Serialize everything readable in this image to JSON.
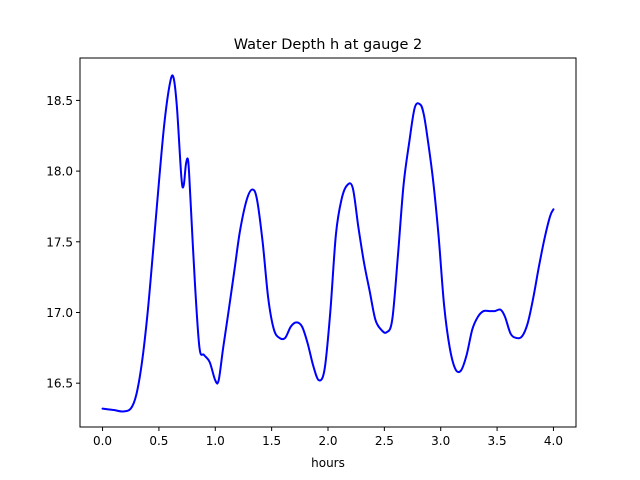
{
  "chart_data": {
    "type": "line",
    "title": "Water Depth h at gauge 2",
    "xlabel": "hours",
    "ylabel": "",
    "xlim": [
      -0.2,
      4.2
    ],
    "ylim": [
      16.19,
      18.8
    ],
    "xticks": [
      0.0,
      0.5,
      1.0,
      1.5,
      2.0,
      2.5,
      3.0,
      3.5,
      4.0
    ],
    "xtick_labels": [
      "0.0",
      "0.5",
      "1.0",
      "1.5",
      "2.0",
      "2.5",
      "3.0",
      "3.5",
      "4.0"
    ],
    "yticks": [
      16.5,
      17.0,
      17.5,
      18.0,
      18.5
    ],
    "ytick_labels": [
      "16.5",
      "17.0",
      "17.5",
      "18.0",
      "18.5"
    ],
    "grid": false,
    "series": [
      {
        "color": "#0000ff",
        "x": [
          0.0,
          0.1,
          0.18,
          0.25,
          0.3,
          0.35,
          0.4,
          0.45,
          0.5,
          0.55,
          0.6,
          0.63,
          0.66,
          0.7,
          0.72,
          0.74,
          0.76,
          0.78,
          0.82,
          0.86,
          0.9,
          0.95,
          1.0,
          1.03,
          1.07,
          1.12,
          1.17,
          1.22,
          1.28,
          1.33,
          1.37,
          1.42,
          1.47,
          1.52,
          1.57,
          1.62,
          1.67,
          1.72,
          1.77,
          1.82,
          1.87,
          1.92,
          1.97,
          2.02,
          2.07,
          2.12,
          2.17,
          2.22,
          2.27,
          2.32,
          2.37,
          2.42,
          2.47,
          2.52,
          2.57,
          2.62,
          2.67,
          2.72,
          2.77,
          2.82,
          2.85,
          2.88,
          2.93,
          2.98,
          3.03,
          3.08,
          3.13,
          3.18,
          3.23,
          3.28,
          3.33,
          3.38,
          3.43,
          3.48,
          3.53,
          3.57,
          3.62,
          3.67,
          3.72,
          3.77,
          3.82,
          3.87,
          3.92,
          3.97,
          4.0
        ],
        "y": [
          16.32,
          16.31,
          16.3,
          16.32,
          16.42,
          16.65,
          17.0,
          17.45,
          17.92,
          18.35,
          18.63,
          18.66,
          18.45,
          17.95,
          17.9,
          18.05,
          18.07,
          17.8,
          17.2,
          16.75,
          16.7,
          16.65,
          16.52,
          16.52,
          16.75,
          17.02,
          17.3,
          17.58,
          17.8,
          17.87,
          17.8,
          17.5,
          17.1,
          16.88,
          16.82,
          16.82,
          16.9,
          16.93,
          16.9,
          16.78,
          16.62,
          16.52,
          16.6,
          17.0,
          17.55,
          17.8,
          17.9,
          17.88,
          17.6,
          17.35,
          17.15,
          16.95,
          16.88,
          16.86,
          16.95,
          17.4,
          17.9,
          18.2,
          18.45,
          18.47,
          18.4,
          18.25,
          17.95,
          17.55,
          17.05,
          16.75,
          16.6,
          16.59,
          16.7,
          16.88,
          16.97,
          17.01,
          17.01,
          17.01,
          17.02,
          16.97,
          16.85,
          16.82,
          16.83,
          16.92,
          17.1,
          17.32,
          17.52,
          17.68,
          17.73
        ]
      }
    ]
  }
}
